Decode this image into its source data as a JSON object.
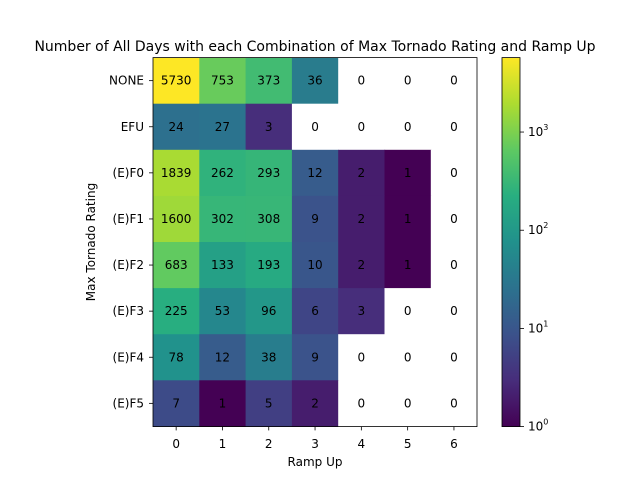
{
  "chart_data": {
    "type": "heatmap",
    "title": "Number of All Days with each Combination of Max Tornado Rating and Ramp Up",
    "xlabel": "Ramp Up",
    "ylabel": "Max Tornado Rating",
    "x_categories": [
      "0",
      "1",
      "2",
      "3",
      "4",
      "5",
      "6"
    ],
    "y_categories": [
      "NONE",
      "EFU",
      "(E)F0",
      "(E)F1",
      "(E)F2",
      "(E)F3",
      "(E)F4",
      "(E)F5"
    ],
    "values": [
      [
        5730,
        753,
        373,
        36,
        0,
        0,
        0
      ],
      [
        24,
        27,
        3,
        0,
        0,
        0,
        0
      ],
      [
        1839,
        262,
        293,
        12,
        2,
        1,
        0
      ],
      [
        1600,
        302,
        308,
        9,
        2,
        1,
        0
      ],
      [
        683,
        133,
        193,
        10,
        2,
        1,
        0
      ],
      [
        225,
        53,
        96,
        6,
        3,
        0,
        0
      ],
      [
        78,
        12,
        38,
        9,
        0,
        0,
        0
      ],
      [
        7,
        1,
        5,
        2,
        0,
        0,
        0
      ]
    ],
    "color_scale": "log",
    "colormap": "viridis",
    "zero_color": "#ffffff",
    "clim": [
      1,
      5730
    ],
    "colorbar": {
      "position": "right",
      "ticks": [
        {
          "value": 1,
          "base": "10",
          "exp": "0"
        },
        {
          "value": 10,
          "base": "10",
          "exp": "1"
        },
        {
          "value": 100,
          "base": "10",
          "exp": "2"
        },
        {
          "value": 1000,
          "base": "10",
          "exp": "3"
        }
      ]
    }
  }
}
